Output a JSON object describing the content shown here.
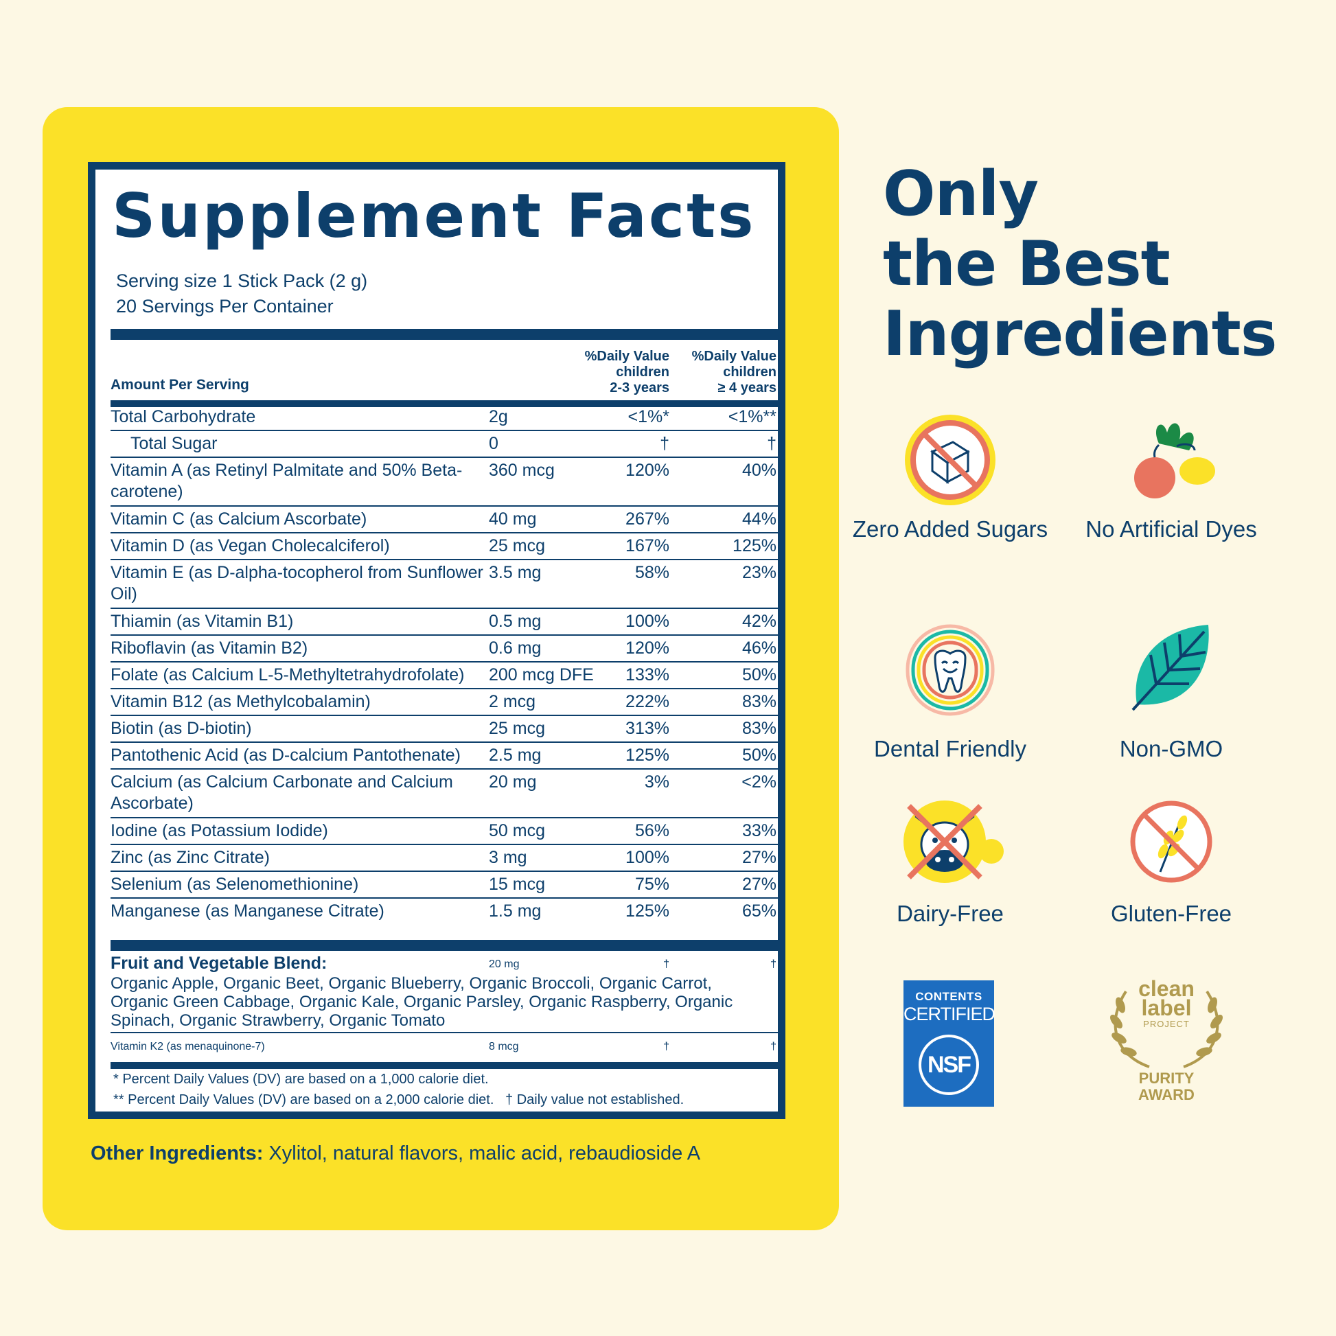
{
  "facts": {
    "title": "Supplement Facts",
    "serving_size": "Serving size 1 Stick Pack (2 g)",
    "servings_per_container": "20 Servings Per Container",
    "header": {
      "amount_per_serving": "Amount Per Serving",
      "dv_1": [
        "%Daily Value",
        "children",
        "2-3 years"
      ],
      "dv_2": [
        "%Daily Value",
        "children",
        "≥ 4 years"
      ]
    },
    "rows": [
      {
        "name": "Total Carbohydrate",
        "amount": "2g",
        "dv1": "<1%*",
        "dv2": "<1%**"
      },
      {
        "name": "Total Sugar",
        "amount": "0",
        "dv1": "†",
        "dv2": "†"
      },
      {
        "name": "Vitamin A (as Retinyl Palmitate and 50% Beta-carotene)",
        "amount": "360 mcg",
        "dv1": "120%",
        "dv2": "40%"
      },
      {
        "name": "Vitamin C (as Calcium Ascorbate)",
        "amount": "40 mg",
        "dv1": "267%",
        "dv2": "44%"
      },
      {
        "name": "Vitamin D (as Vegan Cholecalciferol)",
        "amount": "25 mcg",
        "dv1": "167%",
        "dv2": "125%"
      },
      {
        "name": "Vitamin E (as D-alpha-tocopherol from Sunflower Oil)",
        "amount": "3.5 mg",
        "dv1": "58%",
        "dv2": "23%"
      },
      {
        "name": "Thiamin (as Vitamin B1)",
        "amount": "0.5 mg",
        "dv1": "100%",
        "dv2": "42%"
      },
      {
        "name": "Riboflavin (as Vitamin B2)",
        "amount": "0.6 mg",
        "dv1": "120%",
        "dv2": "46%"
      },
      {
        "name": "Folate (as Calcium L-5-Methyltetrahydrofolate)",
        "amount": "200 mcg DFE",
        "dv1": "133%",
        "dv2": "50%"
      },
      {
        "name": "Vitamin B12 (as Methylcobalamin)",
        "amount": "2 mcg",
        "dv1": "222%",
        "dv2": "83%"
      },
      {
        "name": "Biotin (as D-biotin)",
        "amount": "25 mcg",
        "dv1": "313%",
        "dv2": "83%"
      },
      {
        "name": "Pantothenic Acid (as D-calcium Pantothenate)",
        "amount": "2.5 mg",
        "dv1": "125%",
        "dv2": "50%"
      },
      {
        "name": "Calcium (as Calcium Carbonate and Calcium Ascorbate)",
        "amount": "20 mg",
        "dv1": "3%",
        "dv2": "<2%"
      },
      {
        "name": "Iodine (as Potassium Iodide)",
        "amount": "50 mcg",
        "dv1": "56%",
        "dv2": "33%"
      },
      {
        "name": "Zinc (as Zinc Citrate)",
        "amount": "3 mg",
        "dv1": "100%",
        "dv2": "27%"
      },
      {
        "name": "Selenium (as Selenomethionine)",
        "amount": "15 mcg",
        "dv1": "75%",
        "dv2": "27%"
      },
      {
        "name": "Manganese (as Manganese Citrate)",
        "amount": "1.5 mg",
        "dv1": "125%",
        "dv2": "65%"
      }
    ],
    "blend": {
      "title": "Fruit and Vegetable Blend:",
      "amount": "20 mg",
      "dv1": "†",
      "dv2": "†",
      "ingredients": "Organic Apple, Organic Beet, Organic Blueberry, Organic Broccoli, Organic Carrot, Organic Green Cabbage, Organic Kale, Organic Parsley, Organic Raspberry, Organic Spinach, Organic Strawberry, Organic Tomato"
    },
    "k2": {
      "name": "Vitamin K2 (as menaquinone-7)",
      "amount": "8 mcg",
      "dv1": "†",
      "dv2": "†"
    },
    "footnote_1": "* Percent Daily Values (DV) are based on a 1,000 calorie diet.",
    "footnote_2": "** Percent Daily Values (DV) are based on a 2,000 calorie diet.   † Daily value not established."
  },
  "other_ingredients": {
    "label": "Other Ingredients:",
    "text": " Xylitol, natural flavors, malic acid, rebaudioside A"
  },
  "headline": [
    "Only",
    "the Best",
    "Ingredients"
  ],
  "badges": [
    {
      "icon": "no-sugar-icon",
      "label": "Zero Added Sugars"
    },
    {
      "icon": "produce-icon",
      "label": "No Artificial Dyes"
    },
    {
      "icon": "happy-tooth-icon",
      "label": "Dental Friendly"
    },
    {
      "icon": "leaf-icon",
      "label": "Non-GMO"
    },
    {
      "icon": "no-dairy-icon",
      "label": "Dairy-Free"
    },
    {
      "icon": "no-gluten-icon",
      "label": "Gluten-Free"
    }
  ],
  "nsf": {
    "top": "CONTENTS",
    "middle": "CERTIFIED",
    "logo": "NSF"
  },
  "clean_label": {
    "line1": "clean",
    "line2": "label",
    "line3": "PROJECT",
    "line4": "PURITY",
    "line5": "AWARD"
  },
  "colors": {
    "navy": "#0d3f6b",
    "yellow": "#fbe128",
    "cream": "#fdf8e4",
    "nsf_blue": "#1d6dc0",
    "gold": "#b09a4e",
    "coral": "#e8745f",
    "teal": "#1bb9a6"
  }
}
